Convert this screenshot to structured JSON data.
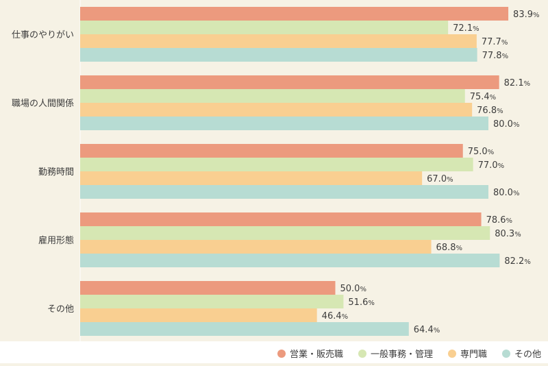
{
  "chart_data": {
    "type": "bar",
    "orientation": "horizontal",
    "categories": [
      "仕事のやりがい",
      "職場の人間関係",
      "勤務時間",
      "雇用形態",
      "その他"
    ],
    "unit": "%",
    "xlim": [
      0,
      100
    ],
    "grid": false,
    "legend_position": "bottom-right",
    "series": [
      {
        "name": "営業・販売職",
        "color": "#ec9a7e",
        "values": [
          83.9,
          82.1,
          75.0,
          78.6,
          50.0
        ]
      },
      {
        "name": "一般事務・管理",
        "color": "#d6e7b3",
        "values": [
          72.1,
          75.4,
          77.0,
          80.3,
          51.6
        ]
      },
      {
        "name": "専門職",
        "color": "#f9cf91",
        "values": [
          77.7,
          76.8,
          67.0,
          68.8,
          46.4
        ]
      },
      {
        "name": "その他",
        "color": "#b7dcd3",
        "values": [
          77.8,
          80.0,
          80.0,
          82.2,
          64.4
        ]
      }
    ]
  }
}
